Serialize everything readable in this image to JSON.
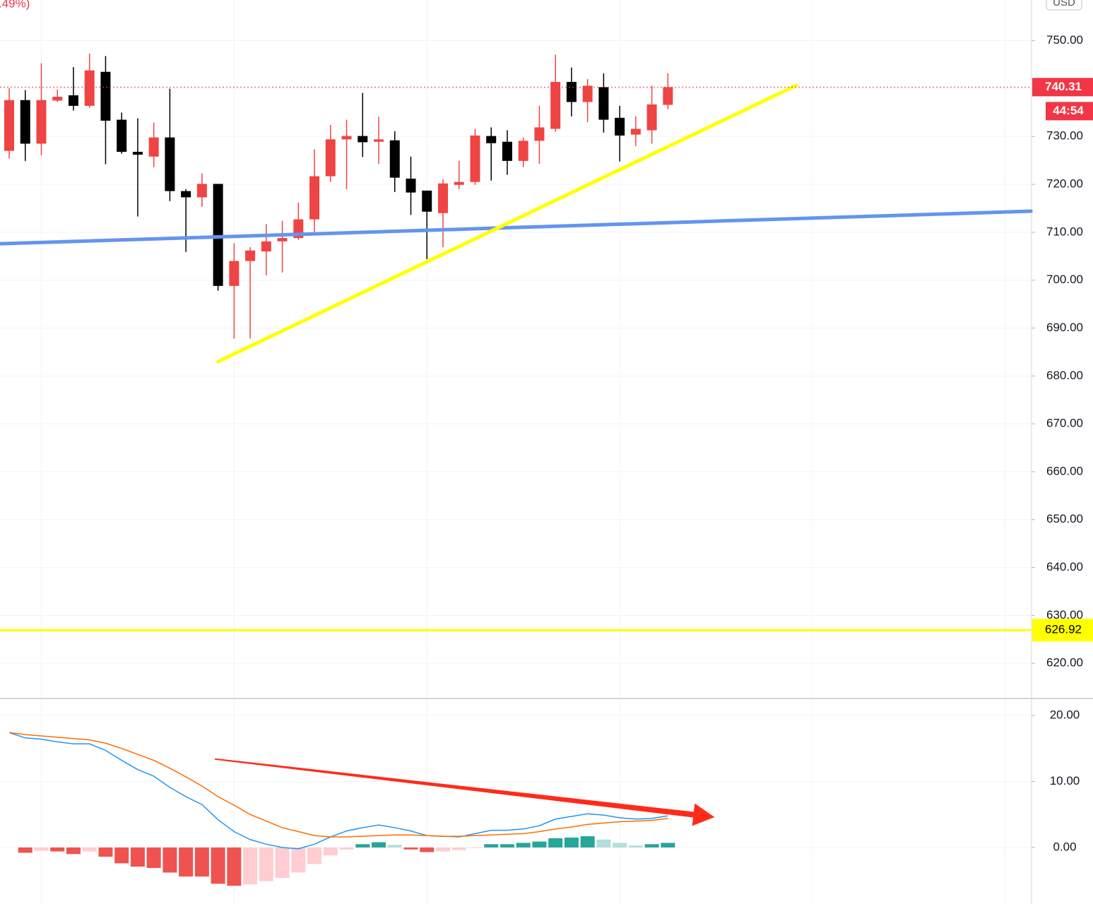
{
  "chart_data": [
    {
      "type": "candlestick",
      "change_label": ".49%)",
      "currency": "USD",
      "countdown": "44:54",
      "up_color": "#ef4444",
      "down_color": "#000000",
      "open": [
        727.0,
        737.6,
        728.5,
        737.5,
        738.6,
        736.4,
        743.5,
        733.5,
        726.8,
        725.8,
        729.8,
        718.6,
        717.3,
        720.1,
        698.8,
        704.0,
        706.0,
        708.1,
        708.8,
        712.7,
        721.7,
        729.4,
        730.1,
        728.9,
        729.2,
        721.2,
        718.7,
        714.0,
        719.9,
        720.5,
        730.1,
        728.9,
        724.9,
        729.1,
        731.6,
        741.4,
        737.2,
        740.3,
        733.9,
        730.4,
        731.3,
        736.6
      ],
      "high": [
        740.1,
        739.7,
        745.3,
        739.8,
        744.5,
        747.3,
        746.8,
        735.0,
        733.8,
        732.9,
        740.0,
        719.0,
        722.3,
        720.1,
        707.7,
        706.9,
        711.7,
        712.4,
        716.2,
        727.3,
        732.4,
        733.5,
        739.1,
        734.1,
        731.1,
        725.8,
        718.7,
        721.1,
        724.9,
        731.6,
        731.9,
        731.3,
        729.8,
        736.4,
        747.1,
        744.4,
        742.0,
        743.2,
        736.4,
        734.2,
        740.6,
        743.2
      ],
      "low": [
        725.4,
        724.9,
        726.1,
        737.2,
        735.4,
        736.0,
        724.2,
        726.4,
        713.3,
        723.6,
        716.5,
        705.9,
        715.3,
        697.8,
        687.8,
        687.8,
        701.0,
        701.6,
        708.4,
        709.9,
        720.5,
        719.0,
        725.7,
        724.3,
        718.4,
        713.6,
        704.4,
        706.9,
        719.0,
        719.9,
        720.8,
        722.0,
        723.6,
        724.3,
        731.0,
        734.2,
        733.0,
        730.8,
        724.8,
        728.0,
        728.5,
        735.7
      ],
      "close": [
        737.6,
        728.5,
        737.6,
        738.3,
        736.4,
        743.8,
        733.3,
        726.8,
        726.2,
        729.8,
        718.6,
        717.3,
        720.1,
        698.8,
        704.0,
        706.2,
        708.1,
        708.8,
        712.7,
        721.7,
        729.4,
        730.1,
        728.8,
        729.4,
        721.4,
        718.3,
        714.3,
        720.2,
        720.5,
        730.2,
        728.6,
        724.9,
        729.1,
        731.9,
        741.4,
        737.2,
        740.6,
        733.5,
        730.2,
        731.6,
        736.7,
        740.3
      ],
      "ylim": [
        612.8,
        758.5
      ],
      "yticks": [
        {
          "value": 620,
          "label": "620.00"
        },
        {
          "value": 630,
          "label": "630.00"
        },
        {
          "value": 640,
          "label": "640.00"
        },
        {
          "value": 650,
          "label": "650.00"
        },
        {
          "value": 660,
          "label": "660.00"
        },
        {
          "value": 670,
          "label": "670.00"
        },
        {
          "value": 680,
          "label": "680.00"
        },
        {
          "value": 690,
          "label": "690.00"
        },
        {
          "value": 700,
          "label": "700.00"
        },
        {
          "value": 710,
          "label": "710.00"
        },
        {
          "value": 720,
          "label": "720.00"
        },
        {
          "value": 730,
          "label": "730.00"
        },
        {
          "value": 740,
          "label": "740.00"
        },
        {
          "value": 750,
          "label": "750.00"
        }
      ],
      "xticks": [
        2,
        14,
        26,
        38,
        50,
        62
      ],
      "grid": true,
      "last_price": {
        "value": 740.31,
        "label": "740.31",
        "color": "#f23645"
      },
      "hlines": [
        {
          "value": 626.92,
          "label": "626.92",
          "color": "#ffff00"
        }
      ],
      "trendlines": [
        {
          "x": [
            -0.57,
            63.6
          ],
          "y": [
            707.6,
            714.4
          ],
          "color": "#6495ed"
        },
        {
          "x": [
            13.0,
            49.0
          ],
          "y": [
            683.0,
            740.7
          ],
          "color": "#ffff00"
        }
      ]
    },
    {
      "type": "macd",
      "histogram": [
        null,
        -0.8,
        -0.5,
        -0.6,
        -1.0,
        -0.6,
        -1.4,
        -2.4,
        -2.9,
        -3.1,
        -3.8,
        -4.4,
        -4.4,
        -5.5,
        -5.8,
        -5.6,
        -5.1,
        -4.6,
        -3.8,
        -2.5,
        -1.2,
        -0.3,
        0.5,
        0.8,
        0.4,
        -0.3,
        -0.7,
        -0.6,
        -0.4,
        -0.1,
        0.5,
        0.5,
        0.7,
        0.9,
        1.4,
        1.5,
        1.7,
        1.2,
        0.7,
        0.3,
        0.5,
        0.7
      ],
      "histogram_colors": {
        "grow_up": "#26a69a",
        "fall_up": "#b2dfdb",
        "grow_down": "#ffcdd2",
        "fall_down": "#ef5350"
      },
      "series": [
        {
          "color": "#2196f3",
          "values": [
            17.4,
            16.6,
            16.4,
            16.0,
            15.7,
            15.7,
            14.7,
            13.2,
            11.8,
            10.8,
            9.1,
            7.7,
            6.5,
            4.2,
            2.4,
            1.2,
            0.5,
            0.0,
            -0.2,
            0.5,
            1.6,
            2.5,
            3.0,
            3.4,
            3.0,
            2.5,
            1.8,
            1.7,
            1.6,
            2.1,
            2.6,
            2.6,
            2.8,
            3.3,
            4.3,
            4.7,
            5.1,
            4.9,
            4.5,
            4.3,
            4.4,
            4.8
          ]
        },
        {
          "color": "#ff6d00",
          "values": [
            17.4,
            17.1,
            16.9,
            16.7,
            16.5,
            16.3,
            15.8,
            15.0,
            14.1,
            13.2,
            12.0,
            10.7,
            9.3,
            7.7,
            6.4,
            5.0,
            4.0,
            3.0,
            2.4,
            1.8,
            1.6,
            1.6,
            1.7,
            1.8,
            1.9,
            1.9,
            1.8,
            1.7,
            1.7,
            1.8,
            1.9,
            2.0,
            2.1,
            2.4,
            2.8,
            3.1,
            3.5,
            3.7,
            3.9,
            4.0,
            4.1,
            4.4
          ]
        }
      ],
      "ylim": [
        -8.56,
        22.46
      ],
      "yticks": [
        {
          "value": 0,
          "label": "0.00"
        },
        {
          "value": 10,
          "label": "10.00"
        },
        {
          "value": 20,
          "label": "20.00"
        }
      ],
      "xticks": [
        2,
        14,
        26,
        38,
        50,
        62
      ],
      "grid": true,
      "arrows": [
        {
          "x": [
            12.8,
            43.9
          ],
          "y": [
            13.4,
            4.6
          ],
          "color": "#ff2a1a"
        }
      ]
    }
  ]
}
